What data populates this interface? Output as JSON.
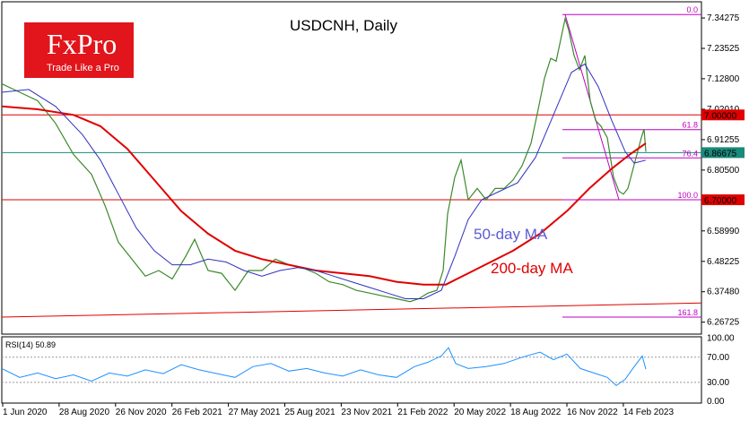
{
  "chart_data": {
    "type": "line",
    "title": "USDCNH, Daily",
    "logo": {
      "brand": "FxPro",
      "tagline": "Trade Like a Pro",
      "color": "#e1151b"
    },
    "y_ticks": [
      "7.34275",
      "7.23525",
      "7.12800",
      "7.02010",
      "6.91255",
      "6.80500",
      "6.69775",
      "6.58990",
      "6.48225",
      "6.37480",
      "6.26725"
    ],
    "y_tick_values": [
      7.34275,
      7.23525,
      7.128,
      7.0201,
      6.91255,
      6.805,
      6.69775,
      6.5899,
      6.48225,
      6.3748,
      6.26725
    ],
    "ylim": [
      6.225,
      7.4
    ],
    "x_ticks": [
      "1 Jun 2020",
      "28 Aug 2020",
      "26 Nov 2020",
      "26 Feb 2021",
      "27 May 2021",
      "25 Aug 2021",
      "23 Nov 2021",
      "21 Feb 2022",
      "20 May 2022",
      "18 Aug 2022",
      "16 Nov 2022",
      "14 Feb 2023"
    ],
    "price_tags": [
      {
        "label": "7.00000",
        "value": 7.0,
        "color": "#e00000"
      },
      {
        "label": "6.86675",
        "value": 6.86675,
        "color": "#1a8a7a"
      },
      {
        "label": "6.70000",
        "value": 6.7,
        "color": "#e00000"
      }
    ],
    "fib_levels": [
      {
        "label": "0.0",
        "value": 7.355
      },
      {
        "label": "61.8",
        "value": 6.948
      },
      {
        "label": "76.4",
        "value": 6.848
      },
      {
        "label": "100.0",
        "value": 6.7
      },
      {
        "label": "161.8",
        "value": 6.285
      }
    ],
    "annotations": [
      {
        "text": "50-day MA",
        "color": "#5b5bd6"
      },
      {
        "text": "200-day MA",
        "color": "#e00000"
      }
    ],
    "price_series": [
      {
        "x": 0,
        "y": 7.11
      },
      {
        "x": 20,
        "y": 7.08
      },
      {
        "x": 40,
        "y": 7.05
      },
      {
        "x": 60,
        "y": 6.97
      },
      {
        "x": 80,
        "y": 6.86
      },
      {
        "x": 100,
        "y": 6.79
      },
      {
        "x": 115,
        "y": 6.68
      },
      {
        "x": 130,
        "y": 6.55
      },
      {
        "x": 145,
        "y": 6.49
      },
      {
        "x": 160,
        "y": 6.43
      },
      {
        "x": 175,
        "y": 6.45
      },
      {
        "x": 190,
        "y": 6.42
      },
      {
        "x": 205,
        "y": 6.5
      },
      {
        "x": 215,
        "y": 6.56
      },
      {
        "x": 230,
        "y": 6.45
      },
      {
        "x": 245,
        "y": 6.44
      },
      {
        "x": 260,
        "y": 6.38
      },
      {
        "x": 275,
        "y": 6.45
      },
      {
        "x": 290,
        "y": 6.45
      },
      {
        "x": 305,
        "y": 6.49
      },
      {
        "x": 320,
        "y": 6.47
      },
      {
        "x": 335,
        "y": 6.46
      },
      {
        "x": 350,
        "y": 6.44
      },
      {
        "x": 365,
        "y": 6.41
      },
      {
        "x": 380,
        "y": 6.4
      },
      {
        "x": 395,
        "y": 6.38
      },
      {
        "x": 410,
        "y": 6.37
      },
      {
        "x": 425,
        "y": 6.36
      },
      {
        "x": 440,
        "y": 6.35
      },
      {
        "x": 455,
        "y": 6.34
      },
      {
        "x": 465,
        "y": 6.35
      },
      {
        "x": 475,
        "y": 6.37
      },
      {
        "x": 485,
        "y": 6.38
      },
      {
        "x": 492,
        "y": 6.45
      },
      {
        "x": 497,
        "y": 6.65
      },
      {
        "x": 505,
        "y": 6.78
      },
      {
        "x": 512,
        "y": 6.84
      },
      {
        "x": 520,
        "y": 6.7
      },
      {
        "x": 530,
        "y": 6.74
      },
      {
        "x": 540,
        "y": 6.7
      },
      {
        "x": 550,
        "y": 6.74
      },
      {
        "x": 560,
        "y": 6.74
      },
      {
        "x": 570,
        "y": 6.77
      },
      {
        "x": 580,
        "y": 6.82
      },
      {
        "x": 590,
        "y": 6.9
      },
      {
        "x": 598,
        "y": 7.02
      },
      {
        "x": 605,
        "y": 7.13
      },
      {
        "x": 612,
        "y": 7.2
      },
      {
        "x": 618,
        "y": 7.19
      },
      {
        "x": 624,
        "y": 7.28
      },
      {
        "x": 628,
        "y": 7.34
      },
      {
        "x": 632,
        "y": 7.3
      },
      {
        "x": 638,
        "y": 7.21
      },
      {
        "x": 644,
        "y": 7.16
      },
      {
        "x": 650,
        "y": 7.21
      },
      {
        "x": 656,
        "y": 7.05
      },
      {
        "x": 662,
        "y": 6.98
      },
      {
        "x": 668,
        "y": 6.96
      },
      {
        "x": 675,
        "y": 6.92
      },
      {
        "x": 682,
        "y": 6.78
      },
      {
        "x": 688,
        "y": 6.73
      },
      {
        "x": 693,
        "y": 6.72
      },
      {
        "x": 698,
        "y": 6.74
      },
      {
        "x": 703,
        "y": 6.8
      },
      {
        "x": 708,
        "y": 6.86
      },
      {
        "x": 713,
        "y": 6.92
      },
      {
        "x": 716,
        "y": 6.95
      },
      {
        "x": 718,
        "y": 6.87
      }
    ],
    "ma50_series": [
      {
        "x": 0,
        "y": 7.08
      },
      {
        "x": 30,
        "y": 7.09
      },
      {
        "x": 60,
        "y": 7.03
      },
      {
        "x": 90,
        "y": 6.93
      },
      {
        "x": 110,
        "y": 6.84
      },
      {
        "x": 130,
        "y": 6.72
      },
      {
        "x": 150,
        "y": 6.6
      },
      {
        "x": 170,
        "y": 6.52
      },
      {
        "x": 190,
        "y": 6.47
      },
      {
        "x": 210,
        "y": 6.47
      },
      {
        "x": 230,
        "y": 6.49
      },
      {
        "x": 250,
        "y": 6.48
      },
      {
        "x": 270,
        "y": 6.45
      },
      {
        "x": 290,
        "y": 6.43
      },
      {
        "x": 310,
        "y": 6.45
      },
      {
        "x": 330,
        "y": 6.46
      },
      {
        "x": 350,
        "y": 6.45
      },
      {
        "x": 370,
        "y": 6.43
      },
      {
        "x": 390,
        "y": 6.41
      },
      {
        "x": 410,
        "y": 6.39
      },
      {
        "x": 430,
        "y": 6.37
      },
      {
        "x": 450,
        "y": 6.35
      },
      {
        "x": 470,
        "y": 6.35
      },
      {
        "x": 490,
        "y": 6.38
      },
      {
        "x": 505,
        "y": 6.5
      },
      {
        "x": 520,
        "y": 6.63
      },
      {
        "x": 535,
        "y": 6.7
      },
      {
        "x": 555,
        "y": 6.73
      },
      {
        "x": 575,
        "y": 6.76
      },
      {
        "x": 595,
        "y": 6.85
      },
      {
        "x": 615,
        "y": 7.0
      },
      {
        "x": 635,
        "y": 7.15
      },
      {
        "x": 650,
        "y": 7.18
      },
      {
        "x": 665,
        "y": 7.1
      },
      {
        "x": 680,
        "y": 6.98
      },
      {
        "x": 695,
        "y": 6.87
      },
      {
        "x": 705,
        "y": 6.83
      },
      {
        "x": 718,
        "y": 6.84
      }
    ],
    "ma200_series": [
      {
        "x": 0,
        "y": 7.03
      },
      {
        "x": 40,
        "y": 7.02
      },
      {
        "x": 80,
        "y": 7.0
      },
      {
        "x": 110,
        "y": 6.96
      },
      {
        "x": 140,
        "y": 6.88
      },
      {
        "x": 170,
        "y": 6.77
      },
      {
        "x": 200,
        "y": 6.66
      },
      {
        "x": 230,
        "y": 6.58
      },
      {
        "x": 260,
        "y": 6.52
      },
      {
        "x": 290,
        "y": 6.49
      },
      {
        "x": 320,
        "y": 6.47
      },
      {
        "x": 350,
        "y": 6.45
      },
      {
        "x": 380,
        "y": 6.44
      },
      {
        "x": 410,
        "y": 6.43
      },
      {
        "x": 440,
        "y": 6.41
      },
      {
        "x": 470,
        "y": 6.4
      },
      {
        "x": 495,
        "y": 6.4
      },
      {
        "x": 520,
        "y": 6.44
      },
      {
        "x": 545,
        "y": 6.48
      },
      {
        "x": 570,
        "y": 6.52
      },
      {
        "x": 600,
        "y": 6.58
      },
      {
        "x": 630,
        "y": 6.66
      },
      {
        "x": 655,
        "y": 6.74
      },
      {
        "x": 680,
        "y": 6.81
      },
      {
        "x": 700,
        "y": 6.86
      },
      {
        "x": 718,
        "y": 6.9
      }
    ],
    "rsi": {
      "label": "RSI(14) 50.89",
      "ticks": [
        "100.00",
        "70.00",
        "30.00",
        "0.00"
      ],
      "tick_values": [
        100,
        70,
        30,
        0
      ],
      "series": [
        {
          "x": 0,
          "y": 52
        },
        {
          "x": 20,
          "y": 38
        },
        {
          "x": 40,
          "y": 45
        },
        {
          "x": 60,
          "y": 36
        },
        {
          "x": 80,
          "y": 42
        },
        {
          "x": 100,
          "y": 32
        },
        {
          "x": 120,
          "y": 45
        },
        {
          "x": 140,
          "y": 40
        },
        {
          "x": 160,
          "y": 50
        },
        {
          "x": 180,
          "y": 44
        },
        {
          "x": 200,
          "y": 58
        },
        {
          "x": 220,
          "y": 50
        },
        {
          "x": 240,
          "y": 44
        },
        {
          "x": 260,
          "y": 38
        },
        {
          "x": 280,
          "y": 55
        },
        {
          "x": 300,
          "y": 60
        },
        {
          "x": 320,
          "y": 48
        },
        {
          "x": 340,
          "y": 52
        },
        {
          "x": 360,
          "y": 45
        },
        {
          "x": 380,
          "y": 40
        },
        {
          "x": 400,
          "y": 50
        },
        {
          "x": 420,
          "y": 42
        },
        {
          "x": 440,
          "y": 38
        },
        {
          "x": 460,
          "y": 55
        },
        {
          "x": 475,
          "y": 62
        },
        {
          "x": 490,
          "y": 72
        },
        {
          "x": 498,
          "y": 85
        },
        {
          "x": 506,
          "y": 60
        },
        {
          "x": 520,
          "y": 52
        },
        {
          "x": 540,
          "y": 55
        },
        {
          "x": 560,
          "y": 60
        },
        {
          "x": 580,
          "y": 70
        },
        {
          "x": 600,
          "y": 78
        },
        {
          "x": 615,
          "y": 66
        },
        {
          "x": 630,
          "y": 75
        },
        {
          "x": 645,
          "y": 52
        },
        {
          "x": 660,
          "y": 45
        },
        {
          "x": 675,
          "y": 38
        },
        {
          "x": 685,
          "y": 25
        },
        {
          "x": 695,
          "y": 35
        },
        {
          "x": 705,
          "y": 55
        },
        {
          "x": 714,
          "y": 72
        },
        {
          "x": 718,
          "y": 51
        }
      ]
    }
  }
}
